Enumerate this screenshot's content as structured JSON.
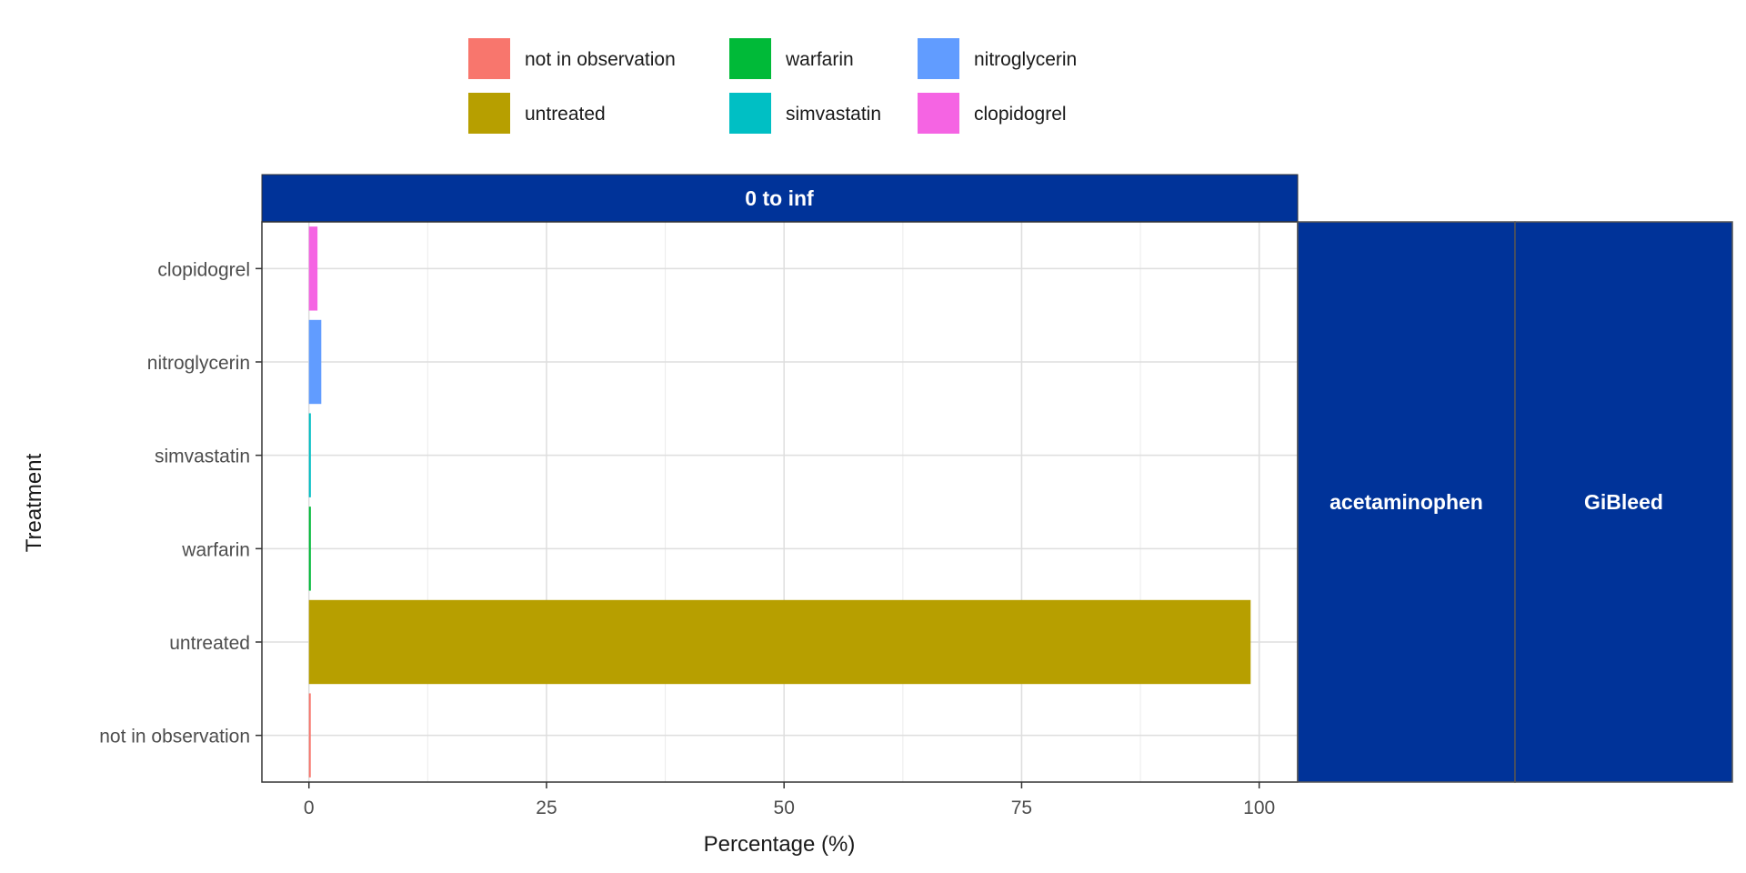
{
  "chart_data": {
    "type": "bar",
    "orientation": "horizontal",
    "categories": [
      "not in observation",
      "untreated",
      "warfarin",
      "simvastatin",
      "nitroglycerin",
      "clopidogrel"
    ],
    "values": [
      0.15,
      99.1,
      0.2,
      0.2,
      1.3,
      0.9
    ],
    "colors": [
      "#F8766D",
      "#B79F00",
      "#00BA38",
      "#00BFC4",
      "#619CFF",
      "#F564E3"
    ],
    "xlabel": "Percentage (%)",
    "ylabel": "Treatment",
    "xlim": [
      -4.95,
      104.05
    ],
    "xticks": [
      0,
      25,
      50,
      75,
      100
    ],
    "grid": true,
    "legend": {
      "placement": "top",
      "entries": [
        "not in observation",
        "untreated",
        "warfarin",
        "simvastatin",
        "nitroglycerin",
        "clopidogrel"
      ]
    },
    "facet": {
      "top_strip": "0 to inf",
      "right_strips": [
        "acetaminophen",
        "GiBleed"
      ],
      "strip_color": "#003399"
    }
  }
}
